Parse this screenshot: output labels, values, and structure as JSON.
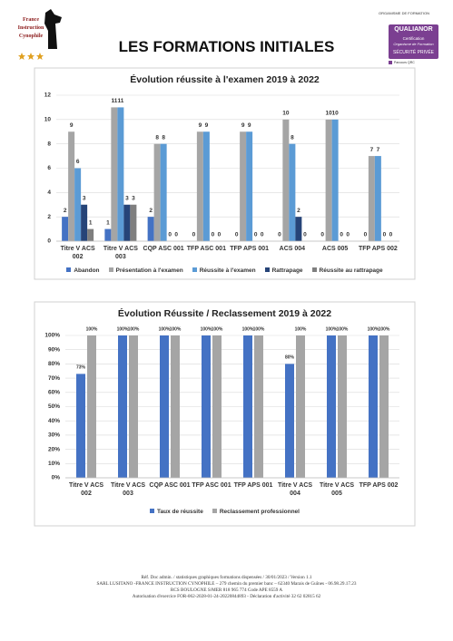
{
  "header": {
    "logo_text": "France Instruction Cynophile",
    "title": "LES FORMATIONS INITIALES",
    "organism": "ORGANISME DE FORMATION",
    "cert_brand": "QUALIANOR",
    "cert_line1": "Certification",
    "cert_line2": "Organisme de Formation",
    "cert_line3": "SÉCURITÉ PRIVÉE",
    "cert_note": "Parcours QRC"
  },
  "chart_data": [
    {
      "type": "bar",
      "title": "Évolution réussite à l'examen 2019 à 2022",
      "categories": [
        "Titre V ACS 002",
        "Titre V ACS 003",
        "CQP ASC 001",
        "TFP ASC 001",
        "TFP APS 001",
        "ACS 004",
        "ACS 005",
        "TFP APS 002"
      ],
      "series": [
        {
          "name": "Abandon",
          "color": "#4472c4",
          "values": [
            2,
            1,
            2,
            0,
            0,
            0,
            0,
            0
          ]
        },
        {
          "name": "Présentation à l'examen",
          "color": "#a5a5a5",
          "values": [
            9,
            11,
            8,
            9,
            9,
            10,
            10,
            7
          ]
        },
        {
          "name": "Réussite à l'examen",
          "color": "#5b9bd5",
          "values": [
            6,
            11,
            8,
            9,
            9,
            8,
            10,
            7
          ]
        },
        {
          "name": "Rattrapage",
          "color": "#264478",
          "values": [
            3,
            3,
            0,
            0,
            0,
            2,
            0,
            0
          ]
        },
        {
          "name": "Réussite au rattrapage",
          "color": "#7f7f7f",
          "values": [
            1,
            3,
            0,
            0,
            0,
            0,
            0,
            0
          ]
        }
      ],
      "ylim": [
        0,
        12
      ],
      "yticks": [
        0,
        2,
        4,
        6,
        8,
        10,
        12
      ],
      "grid": true,
      "legend": "bottom"
    },
    {
      "type": "bar",
      "title": "Évolution Réussite / Reclassement 2019 à 2022",
      "categories": [
        "Titre V ACS 002",
        "Titre V ACS 003",
        "CQP ASC 001",
        "TFP ASC 001",
        "TFP APS 001",
        "Titre V ACS 004",
        "Titre V ACS 005",
        "TFP APS 002"
      ],
      "series": [
        {
          "name": "Taux de réussite",
          "color": "#4472c4",
          "values": [
            73,
            100,
            100,
            100,
            100,
            80,
            100,
            100
          ],
          "value_labels": [
            "73%",
            "100%",
            "100%",
            "100%",
            "100%",
            "80%",
            "100%",
            "100%"
          ]
        },
        {
          "name": "Reclassement professionnel",
          "color": "#a5a5a5",
          "values": [
            100,
            100,
            100,
            100,
            100,
            100,
            100,
            100
          ],
          "value_labels": [
            "100%",
            "100%",
            "100%",
            "100%",
            "100%",
            "100%",
            "100%",
            "100%"
          ]
        }
      ],
      "ylim": [
        0,
        100
      ],
      "yticks": [
        {
          "value": 0,
          "label": "0%"
        },
        {
          "value": 10,
          "label": "10%"
        },
        {
          "value": 20,
          "label": "20%"
        },
        {
          "value": 30,
          "label": "30%"
        },
        {
          "value": 40,
          "label": "40%"
        },
        {
          "value": 50,
          "label": "50%"
        },
        {
          "value": 60,
          "label": "60%"
        },
        {
          "value": 70,
          "label": "70%"
        },
        {
          "value": 80,
          "label": "80%"
        },
        {
          "value": 90,
          "label": "90%"
        },
        {
          "value": 100,
          "label": "100%"
        }
      ],
      "grid": true,
      "legend": "bottom"
    }
  ],
  "footer": {
    "lines": [
      "Réf. Doc admin. / statistiques graphiques formations dispensées / 30/01/2023 / Version 1.1",
      "SARL LUSITANO -FRANCE INSTRUCTION CYNOPHILE – 279 chemin du premier banc – 62340 Marais de Guînes - 06.98.29.17.23",
      "RCS BOULOGNE S/MER 818 965 774 Code APE 8559 A",
      "Autorisation d'exercice FOR-062-2028-01-24-20220844893 - Déclaration d'activité 32 62 02815 62"
    ]
  }
}
